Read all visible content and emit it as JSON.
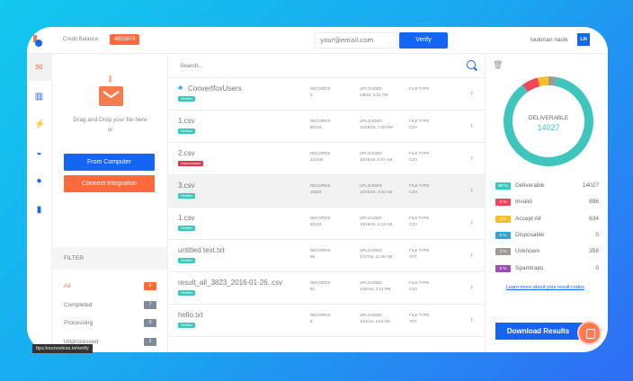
{
  "header": {
    "credit_label": "Credit Balance",
    "credit_value": "4853874",
    "email_placeholder": "your@email.com",
    "verify_label": "Verify",
    "user_name": "loukman nacik",
    "avatar_initials": "LN"
  },
  "rail": [
    "upload-icon",
    "chart-icon",
    "flash-icon",
    "basket-icon",
    "user-icon",
    "document-icon"
  ],
  "upload": {
    "drag_text": "Drag and Drop your file here or",
    "from_computer": "From Computer",
    "connect_integration": "Connect Integration"
  },
  "filter": {
    "title": "FILTER",
    "items": [
      {
        "label": "All",
        "count": "9",
        "active": true
      },
      {
        "label": "Completed",
        "count": "7"
      },
      {
        "label": "Processing",
        "count": "0"
      },
      {
        "label": "Unprocessed",
        "count": "2"
      }
    ]
  },
  "search": {
    "placeholder": "Search..."
  },
  "columns": {
    "records": "RECORDS",
    "uploaded": "UPLOADED",
    "file_type": "FILE TYPE"
  },
  "files": [
    {
      "name": "ConvertfoxUsers",
      "status": "Verified",
      "records": "2",
      "uploaded": "1/8/19, 5:31 PM",
      "type": ""
    },
    {
      "name": "1.csv",
      "status": "Verified",
      "records": "80133",
      "uploaded": "12/18/18, 7:06 PM",
      "type": "CSV"
    },
    {
      "name": "2.csv",
      "status": "Unprocessed",
      "records": "311045",
      "uploaded": "10/25/18, 5:07 AM",
      "type": "CSV"
    },
    {
      "name": "3.csv",
      "status": "Verified",
      "records": "15918",
      "uploaded": "10/23/18, 4:00 AM",
      "type": "CSV"
    },
    {
      "name": "1.csv",
      "status": "Verified",
      "records": "80133",
      "uploaded": "10/19/18, 4:13 AM",
      "type": "CSV"
    },
    {
      "name": "untitled text.txt",
      "status": "Verified",
      "records": "89",
      "uploaded": "2/17/16, 11:46 AM",
      "type": "TXT"
    },
    {
      "name": "result_all_3823_2016-01-26..csv",
      "status": "Verified",
      "records": "82",
      "uploaded": "1/26/16, 3:13 PM",
      "type": "CSV"
    },
    {
      "name": "hello.txt",
      "status": "Verified",
      "records": "8",
      "uploaded": "1/24/16, 1:54 AM",
      "type": "TXT"
    }
  ],
  "colors": {
    "verified": "#3ec6bd",
    "unprocessed": "#d9394f",
    "accent": "#1565f5",
    "orange": "#ff6a3d"
  },
  "results": {
    "center_label": "DELIVERABLE",
    "center_value": "14027",
    "items": [
      {
        "pct": "89 %",
        "label": "Deliverable",
        "count": "14027",
        "color": "#3ec6bd",
        "share": 89
      },
      {
        "pct": "6 %",
        "label": "Invalid",
        "count": "896",
        "color": "#f0465a",
        "share": 6
      },
      {
        "pct": "4 %",
        "label": "Accept All",
        "count": "634",
        "color": "#f7c02b",
        "share": 4
      },
      {
        "pct": "0 %",
        "label": "Disposable",
        "count": "0",
        "color": "#2ea3dc",
        "share": 0
      },
      {
        "pct": "3 %",
        "label": "Unknown",
        "count": "358",
        "color": "#9e9a95",
        "share": 3
      },
      {
        "pct": "0 %",
        "label": "Spamtraps",
        "count": "0",
        "color": "#9b4fb5",
        "share": 0
      }
    ],
    "learn_more": "Learn more about your result codes",
    "download": "Download Results"
  },
  "tooltip": "ttps.bounceless.io/verify"
}
